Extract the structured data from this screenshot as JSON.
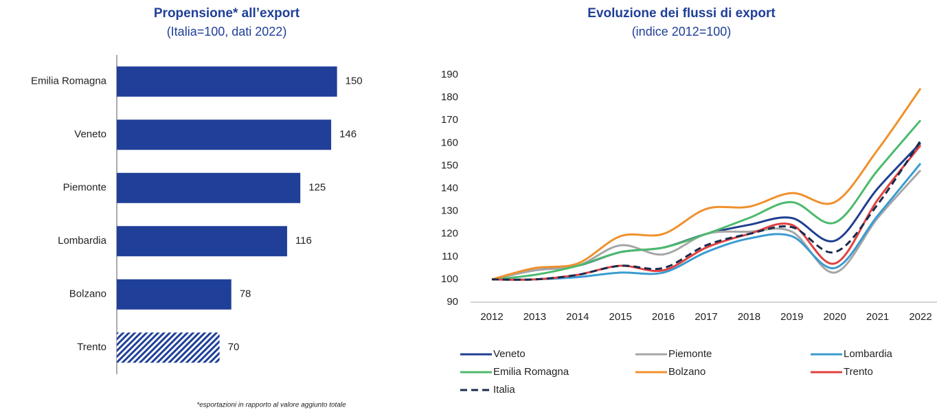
{
  "chart_data": [
    {
      "type": "barh",
      "title": "Propensione* all’export",
      "subtitle": "(Italia=100, dati 2022)",
      "categories": [
        "Emilia Romagna",
        "Veneto",
        "Piemonte",
        "Lombardia",
        "Bolzano",
        "Trento"
      ],
      "values": [
        150,
        146,
        125,
        116,
        78,
        70
      ],
      "hatched": [
        false,
        false,
        false,
        false,
        false,
        true
      ],
      "color": "#1f3f98",
      "xlim": [
        0,
        160
      ],
      "footnote": "*esportazioni in rapporto al valore aggiunto totale"
    },
    {
      "type": "line",
      "title": "Evoluzione dei flussi di export",
      "subtitle": "(indice 2012=100)",
      "x": [
        2012,
        2013,
        2014,
        2015,
        2016,
        2017,
        2018,
        2019,
        2020,
        2021,
        2022
      ],
      "ylim": [
        90,
        190
      ],
      "yticks": [
        90,
        100,
        110,
        120,
        130,
        140,
        150,
        160,
        170,
        180,
        190
      ],
      "series": [
        {
          "name": "Veneto",
          "color": "#1f3f8f",
          "values": [
            100,
            104,
            106,
            112,
            114,
            120,
            124,
            127,
            117,
            140,
            160
          ]
        },
        {
          "name": "Piemonte",
          "color": "#a6a6a6",
          "values": [
            100,
            104,
            106,
            115,
            111,
            120,
            121,
            121,
            103,
            127,
            148
          ]
        },
        {
          "name": "Lombardia",
          "color": "#3a9bd0",
          "values": [
            100,
            100,
            101,
            103,
            103,
            112,
            118,
            119,
            105,
            128,
            151
          ]
        },
        {
          "name": "Emilia Romagna",
          "color": "#4cba6c",
          "values": [
            100,
            102,
            106,
            112,
            114,
            120,
            127,
            134,
            125,
            148,
            170
          ]
        },
        {
          "name": "Bolzano",
          "color": "#f0902c",
          "values": [
            100,
            105,
            107,
            119,
            120,
            131,
            132,
            138,
            134,
            157,
            184
          ]
        },
        {
          "name": "Trento",
          "color": "#e0413f",
          "values": [
            100,
            100,
            102,
            106,
            104,
            114,
            120,
            124,
            107,
            135,
            159
          ]
        },
        {
          "name": "Italia",
          "color": "#1a2b4f",
          "dashed": true,
          "values": [
            100,
            100,
            102,
            106,
            105,
            115,
            120,
            123,
            112,
            133,
            161
          ]
        }
      ]
    }
  ]
}
